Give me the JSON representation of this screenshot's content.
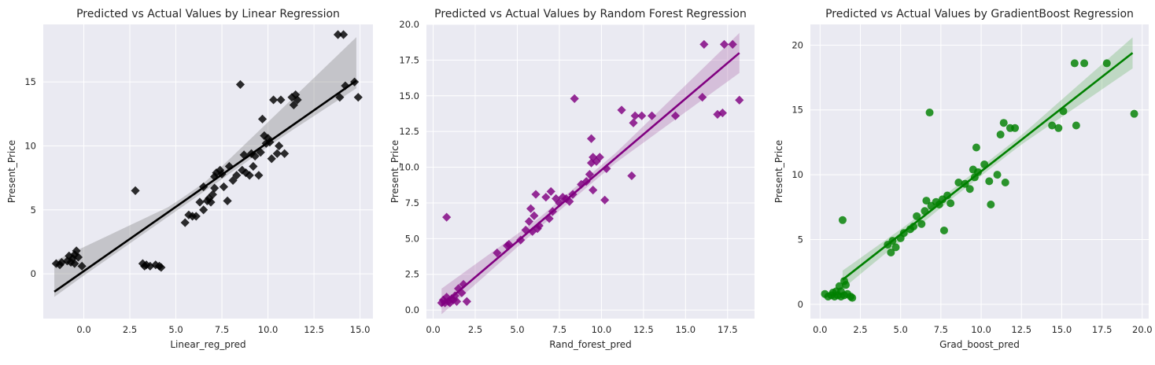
{
  "chart_data": [
    {
      "type": "scatter",
      "title": "Predicted vs Actual Values by Linear Regression",
      "xlabel": "Linear_reg_pred",
      "ylabel": "Present_Price",
      "xlim": [
        -2.2,
        15.7
      ],
      "ylim": [
        -3.5,
        19.5
      ],
      "xticks": [
        0.0,
        2.5,
        5.0,
        7.5,
        10.0,
        12.5,
        15.0
      ],
      "xtick_labels": [
        "0.0",
        "2.5",
        "5.0",
        "7.5",
        "10.0",
        "12.5",
        "15.0"
      ],
      "yticks": [
        0,
        5,
        10,
        15
      ],
      "ytick_labels": [
        "0",
        "5",
        "10",
        "15"
      ],
      "marker": "diamond",
      "color": "#000000",
      "band_color": "#7f7f7f",
      "regression": {
        "x": [
          -1.6,
          14.8
        ],
        "y": [
          -1.4,
          15.1
        ],
        "ci": [
          [
            -0.4,
            2.4
          ],
          [
            -0.6,
            3.4
          ]
        ]
      },
      "grid": true,
      "points": [
        [
          -1.5,
          0.8
        ],
        [
          -1.3,
          0.7
        ],
        [
          -1.2,
          0.9
        ],
        [
          -0.9,
          1.0
        ],
        [
          -0.8,
          1.4
        ],
        [
          -0.7,
          0.9
        ],
        [
          -0.6,
          1.2
        ],
        [
          -0.5,
          1.5
        ],
        [
          -0.4,
          1.8
        ],
        [
          -0.3,
          1.3
        ],
        [
          -0.1,
          0.6
        ],
        [
          -0.5,
          0.8
        ],
        [
          2.8,
          6.5
        ],
        [
          3.2,
          0.8
        ],
        [
          3.3,
          0.6
        ],
        [
          3.4,
          0.7
        ],
        [
          3.6,
          0.6
        ],
        [
          3.9,
          0.7
        ],
        [
          4.1,
          0.6
        ],
        [
          4.2,
          0.5
        ],
        [
          5.5,
          4.0
        ],
        [
          5.7,
          4.6
        ],
        [
          5.9,
          4.5
        ],
        [
          6.1,
          4.5
        ],
        [
          6.3,
          5.6
        ],
        [
          6.5,
          5.0
        ],
        [
          6.5,
          6.8
        ],
        [
          6.7,
          5.7
        ],
        [
          6.8,
          5.9
        ],
        [
          6.9,
          5.6
        ],
        [
          7.0,
          6.2
        ],
        [
          7.1,
          6.7
        ],
        [
          7.1,
          7.6
        ],
        [
          7.2,
          7.9
        ],
        [
          7.4,
          8.1
        ],
        [
          7.5,
          7.8
        ],
        [
          7.6,
          6.8
        ],
        [
          7.8,
          5.7
        ],
        [
          7.9,
          8.4
        ],
        [
          8.1,
          7.3
        ],
        [
          8.3,
          7.7
        ],
        [
          8.5,
          14.8
        ],
        [
          8.6,
          8.1
        ],
        [
          8.7,
          9.3
        ],
        [
          8.8,
          7.9
        ],
        [
          9.0,
          7.7
        ],
        [
          9.1,
          9.4
        ],
        [
          9.2,
          8.4
        ],
        [
          9.3,
          9.2
        ],
        [
          9.5,
          7.7
        ],
        [
          9.6,
          9.5
        ],
        [
          9.7,
          12.1
        ],
        [
          9.8,
          10.8
        ],
        [
          9.9,
          10.2
        ],
        [
          10.0,
          10.6
        ],
        [
          10.1,
          10.3
        ],
        [
          10.2,
          9.0
        ],
        [
          10.3,
          13.6
        ],
        [
          10.5,
          9.4
        ],
        [
          10.6,
          10.0
        ],
        [
          10.7,
          13.6
        ],
        [
          10.9,
          9.4
        ],
        [
          11.3,
          13.8
        ],
        [
          11.4,
          13.2
        ],
        [
          11.5,
          14.0
        ],
        [
          11.6,
          13.6
        ],
        [
          13.8,
          18.7
        ],
        [
          14.1,
          18.7
        ],
        [
          13.9,
          13.8
        ],
        [
          14.2,
          14.7
        ],
        [
          14.7,
          15.0
        ],
        [
          14.9,
          13.8
        ]
      ]
    },
    {
      "type": "scatter",
      "title": "Predicted vs Actual Values by Random Forest Regression",
      "xlabel": "Rand_forest_pred",
      "ylabel": "Present_Price",
      "xlim": [
        -0.4,
        19.1
      ],
      "ylim": [
        -0.6,
        20.0
      ],
      "xticks": [
        0.0,
        2.5,
        5.0,
        7.5,
        10.0,
        12.5,
        15.0,
        17.5
      ],
      "xtick_labels": [
        "0.0",
        "2.5",
        "5.0",
        "7.5",
        "10.0",
        "12.5",
        "15.0",
        "17.5"
      ],
      "yticks": [
        0.0,
        2.5,
        5.0,
        7.5,
        10.0,
        12.5,
        15.0,
        17.5,
        20.0
      ],
      "ytick_labels": [
        "0.0",
        "2.5",
        "5.0",
        "7.5",
        "10.0",
        "12.5",
        "15.0",
        "17.5",
        "20.0"
      ],
      "marker": "diamond",
      "color": "#800080",
      "band_color": "#b070b0",
      "regression": {
        "x": [
          0.5,
          18.2
        ],
        "y": [
          0.3,
          18.0
        ],
        "ci": [
          [
            -0.6,
            1.2
          ],
          [
            -1.4,
            1.4
          ]
        ]
      },
      "grid": true,
      "points": [
        [
          0.5,
          0.5
        ],
        [
          0.6,
          0.7
        ],
        [
          0.7,
          0.5
        ],
        [
          0.8,
          0.9
        ],
        [
          0.9,
          0.6
        ],
        [
          1.0,
          0.5
        ],
        [
          1.1,
          0.8
        ],
        [
          1.2,
          0.7
        ],
        [
          1.3,
          1.0
        ],
        [
          1.4,
          0.6
        ],
        [
          1.5,
          1.5
        ],
        [
          1.7,
          1.2
        ],
        [
          1.8,
          1.8
        ],
        [
          2.0,
          0.6
        ],
        [
          0.8,
          6.5
        ],
        [
          3.8,
          4.0
        ],
        [
          4.4,
          4.5
        ],
        [
          4.5,
          4.6
        ],
        [
          5.2,
          4.9
        ],
        [
          5.5,
          5.6
        ],
        [
          5.7,
          6.2
        ],
        [
          5.8,
          7.1
        ],
        [
          5.9,
          5.5
        ],
        [
          6.0,
          6.6
        ],
        [
          6.1,
          8.1
        ],
        [
          6.2,
          5.7
        ],
        [
          6.3,
          5.9
        ],
        [
          6.7,
          7.9
        ],
        [
          6.9,
          6.4
        ],
        [
          7.0,
          8.3
        ],
        [
          7.1,
          6.9
        ],
        [
          7.3,
          7.8
        ],
        [
          7.5,
          7.5
        ],
        [
          7.7,
          7.9
        ],
        [
          7.9,
          7.8
        ],
        [
          8.1,
          7.6
        ],
        [
          8.3,
          8.1
        ],
        [
          8.4,
          14.8
        ],
        [
          8.8,
          8.8
        ],
        [
          9.1,
          9.0
        ],
        [
          9.3,
          9.5
        ],
        [
          9.4,
          10.3
        ],
        [
          9.4,
          12.0
        ],
        [
          9.5,
          10.7
        ],
        [
          9.5,
          8.4
        ],
        [
          9.7,
          10.4
        ],
        [
          9.9,
          10.7
        ],
        [
          10.2,
          7.7
        ],
        [
          10.3,
          9.9
        ],
        [
          11.2,
          14.0
        ],
        [
          11.8,
          9.4
        ],
        [
          11.9,
          13.1
        ],
        [
          12.0,
          13.6
        ],
        [
          12.4,
          13.6
        ],
        [
          13.0,
          13.6
        ],
        [
          14.4,
          13.6
        ],
        [
          16.0,
          14.9
        ],
        [
          16.1,
          18.6
        ],
        [
          16.9,
          13.7
        ],
        [
          17.2,
          13.8
        ],
        [
          17.3,
          18.6
        ],
        [
          17.8,
          18.6
        ],
        [
          18.2,
          14.7
        ]
      ]
    },
    {
      "type": "scatter",
      "title": "Predicted vs Actual Values by GradientBoost Regression",
      "xlabel": "Grad_boost_pred",
      "ylabel": "Present_Price",
      "xlim": [
        -0.6,
        20.4
      ],
      "ylim": [
        -1.1,
        21.6
      ],
      "xticks": [
        0.0,
        2.5,
        5.0,
        7.5,
        10.0,
        12.5,
        15.0,
        17.5,
        20.0
      ],
      "xtick_labels": [
        "0.0",
        "2.5",
        "5.0",
        "7.5",
        "10.0",
        "12.5",
        "15.0",
        "17.5",
        "20.0"
      ],
      "yticks": [
        0,
        5,
        10,
        15,
        20
      ],
      "ytick_labels": [
        "0",
        "5",
        "10",
        "15",
        "20"
      ],
      "marker": "circle",
      "color": "#008000",
      "band_color": "#70b870",
      "regression": {
        "x": [
          1.4,
          19.4
        ],
        "y": [
          1.9,
          19.4
        ],
        "ci": [
          [
            -0.7,
            0.7
          ],
          [
            -1.2,
            1.2
          ]
        ]
      },
      "grid": true,
      "points": [
        [
          0.3,
          0.8
        ],
        [
          0.5,
          0.6
        ],
        [
          0.7,
          0.7
        ],
        [
          0.8,
          0.9
        ],
        [
          0.9,
          0.6
        ],
        [
          1.0,
          1.0
        ],
        [
          1.1,
          0.7
        ],
        [
          1.2,
          1.4
        ],
        [
          1.3,
          1.0
        ],
        [
          1.3,
          0.6
        ],
        [
          1.5,
          0.7
        ],
        [
          1.6,
          1.5
        ],
        [
          1.7,
          0.8
        ],
        [
          1.9,
          0.6
        ],
        [
          2.0,
          0.5
        ],
        [
          1.4,
          6.5
        ],
        [
          1.5,
          1.8
        ],
        [
          4.2,
          4.6
        ],
        [
          4.4,
          4.0
        ],
        [
          4.5,
          4.9
        ],
        [
          4.7,
          4.4
        ],
        [
          5.0,
          5.1
        ],
        [
          5.2,
          5.5
        ],
        [
          5.6,
          5.8
        ],
        [
          5.8,
          6.0
        ],
        [
          6.0,
          6.8
        ],
        [
          6.3,
          6.2
        ],
        [
          6.5,
          7.2
        ],
        [
          6.6,
          8.0
        ],
        [
          6.8,
          14.8
        ],
        [
          6.9,
          7.6
        ],
        [
          7.2,
          7.9
        ],
        [
          7.4,
          7.7
        ],
        [
          7.6,
          8.1
        ],
        [
          7.7,
          5.7
        ],
        [
          7.9,
          8.4
        ],
        [
          8.1,
          7.8
        ],
        [
          8.6,
          9.4
        ],
        [
          9.0,
          9.3
        ],
        [
          9.3,
          8.9
        ],
        [
          9.5,
          10.4
        ],
        [
          9.6,
          9.8
        ],
        [
          9.7,
          12.1
        ],
        [
          9.8,
          10.2
        ],
        [
          10.2,
          10.8
        ],
        [
          10.5,
          9.5
        ],
        [
          10.6,
          7.7
        ],
        [
          11.0,
          10.0
        ],
        [
          11.2,
          13.1
        ],
        [
          11.4,
          14.0
        ],
        [
          11.5,
          9.4
        ],
        [
          11.8,
          13.6
        ],
        [
          12.1,
          13.6
        ],
        [
          14.4,
          13.8
        ],
        [
          14.8,
          13.6
        ],
        [
          15.1,
          14.9
        ],
        [
          15.8,
          18.6
        ],
        [
          15.9,
          13.8
        ],
        [
          16.4,
          18.6
        ],
        [
          17.8,
          18.6
        ],
        [
          19.5,
          14.7
        ]
      ]
    }
  ]
}
